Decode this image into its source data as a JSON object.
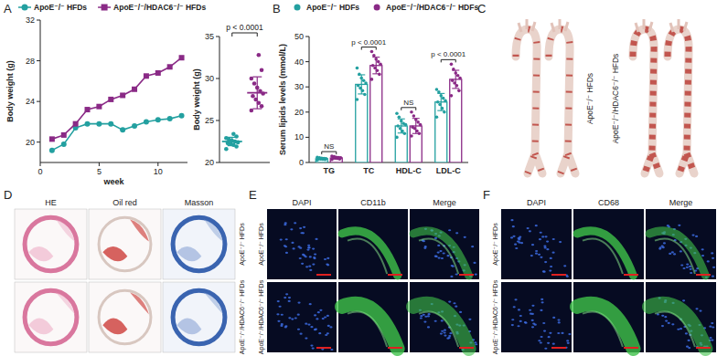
{
  "panel_labels": [
    "A",
    "B",
    "C",
    "D",
    "E",
    "F"
  ],
  "chart_data": [
    {
      "type": "line",
      "x_label": "week",
      "y_label": "Body weight (g)",
      "x": [
        1,
        2,
        3,
        4,
        5,
        6,
        7,
        8,
        9,
        10,
        11,
        12
      ],
      "xlim": [
        0,
        12.5
      ],
      "xticks": [
        0,
        5,
        10
      ],
      "ylim": [
        18,
        32
      ],
      "yticks": [
        20,
        24,
        28,
        32
      ],
      "grid": false,
      "legend": "top",
      "series": [
        {
          "name": "ApoE⁻/⁻ HFDs",
          "color": "#23a0a0",
          "marker": "circle",
          "values": [
            19.2,
            19.8,
            21.4,
            21.8,
            21.8,
            21.8,
            21.2,
            21.6,
            22.0,
            22.2,
            22.3,
            22.6
          ]
        },
        {
          "name": "ApoE⁻/⁻/HDAC6⁻/⁻ HFDs",
          "color": "#8a2a86",
          "marker": "square",
          "values": [
            20.3,
            20.7,
            21.8,
            23.2,
            23.5,
            24.2,
            24.6,
            25.2,
            26.5,
            26.8,
            27.4,
            28.3
          ]
        }
      ]
    },
    {
      "type": "dot_plot",
      "y_label": "Body weight (g)",
      "categories": [
        null,
        null
      ],
      "values": [
        22.5,
        28.3
      ],
      "errors": [
        0.5,
        1.9
      ],
      "points": [
        [
          21.6,
          21.9,
          22.1,
          22.2,
          22.3,
          22.4,
          22.5,
          22.6,
          22.7,
          22.9,
          23.1,
          23.4
        ],
        [
          26.2,
          26.7,
          27.1,
          27.5,
          27.9,
          28.2,
          28.5,
          28.9,
          29.4,
          30.0,
          31.0,
          32.8
        ]
      ],
      "colors": [
        "#23a0a0",
        "#8a2a86"
      ],
      "ylim": [
        20,
        35
      ],
      "yticks": [
        20,
        25,
        30,
        35
      ],
      "grid": false,
      "annotations": [
        "p < 0.0001"
      ]
    },
    {
      "type": "bar",
      "y_label": "Serum lipids levels (mmol/L)",
      "categories": [
        "TG",
        "TC",
        "HDL-C",
        "LDL-C"
      ],
      "ylim": [
        0,
        50
      ],
      "yticks": [
        0,
        10,
        20,
        30,
        40,
        50
      ],
      "grid": false,
      "legend": "top",
      "annotations": [
        "NS",
        "p < 0.0001",
        "NS",
        "p < 0.0001"
      ],
      "series": [
        {
          "name": "ApoE⁻/⁻ HDFs",
          "color": "#23a0a0",
          "values": [
            1.5,
            31,
            14.5,
            24
          ],
          "errors": [
            0.4,
            3.8,
            2.8,
            3.4
          ],
          "points": [
            [
              1.0,
              1.2,
              1.3,
              1.4,
              1.5,
              1.5,
              1.6,
              1.7,
              1.9,
              2.1
            ],
            [
              25,
              27,
              28.5,
              29.5,
              30.5,
              31.5,
              32.5,
              33.5,
              35,
              37.5
            ],
            [
              10,
              11.5,
              12.5,
              13.5,
              14.5,
              15,
              15.5,
              16.5,
              18,
              19.5
            ],
            [
              18,
              20,
              21.5,
              23,
              24,
              24.5,
              25.5,
              26.5,
              28,
              29
            ]
          ]
        },
        {
          "name": "ApoE⁻/⁻/HDAC6⁻/⁻ HDFs",
          "color": "#8a2a86",
          "values": [
            1.8,
            38.5,
            14.5,
            33
          ],
          "errors": [
            0.4,
            3.3,
            3.0,
            3.6
          ],
          "points": [
            [
              1.2,
              1.4,
              1.6,
              1.7,
              1.8,
              1.9,
              2.0,
              2.1,
              2.3,
              2.5
            ],
            [
              33,
              35,
              36.5,
              37.5,
              38.5,
              39,
              40,
              41,
              42.5,
              44
            ],
            [
              10.5,
              11.5,
              12.5,
              13.5,
              14,
              15,
              16,
              17,
              18.5,
              20
            ],
            [
              26.5,
              28.5,
              30.5,
              31.5,
              32.5,
              33.5,
              34.5,
              35.5,
              37,
              39
            ]
          ]
        }
      ]
    }
  ],
  "image_panels": [
    {
      "rows": [
        "ApoE⁻/⁻ HFDs",
        "ApoE⁻/⁻/HDAC6⁻/⁻ HFDs"
      ]
    },
    {
      "columns": [
        "HE",
        "Oil red",
        "Masson"
      ],
      "rows": [
        "ApoE⁻/⁻ HFDs",
        "ApoE⁻/⁻/HDAC6⁻/⁻ HFDs"
      ]
    },
    {
      "columns": [
        "DAPI",
        "CD11b",
        "Merge"
      ],
      "rows": [
        "ApoE⁻/⁻ HFDs",
        "ApoE⁻/⁻/HDAC6⁻/⁻ HFDs"
      ]
    },
    {
      "columns": [
        "DAPI",
        "CD68",
        "Merge"
      ],
      "rows": [
        "ApoE⁻/⁻ HFDs",
        "ApoE⁻/⁻/HDAC6⁻/⁻ HFDs"
      ]
    }
  ]
}
